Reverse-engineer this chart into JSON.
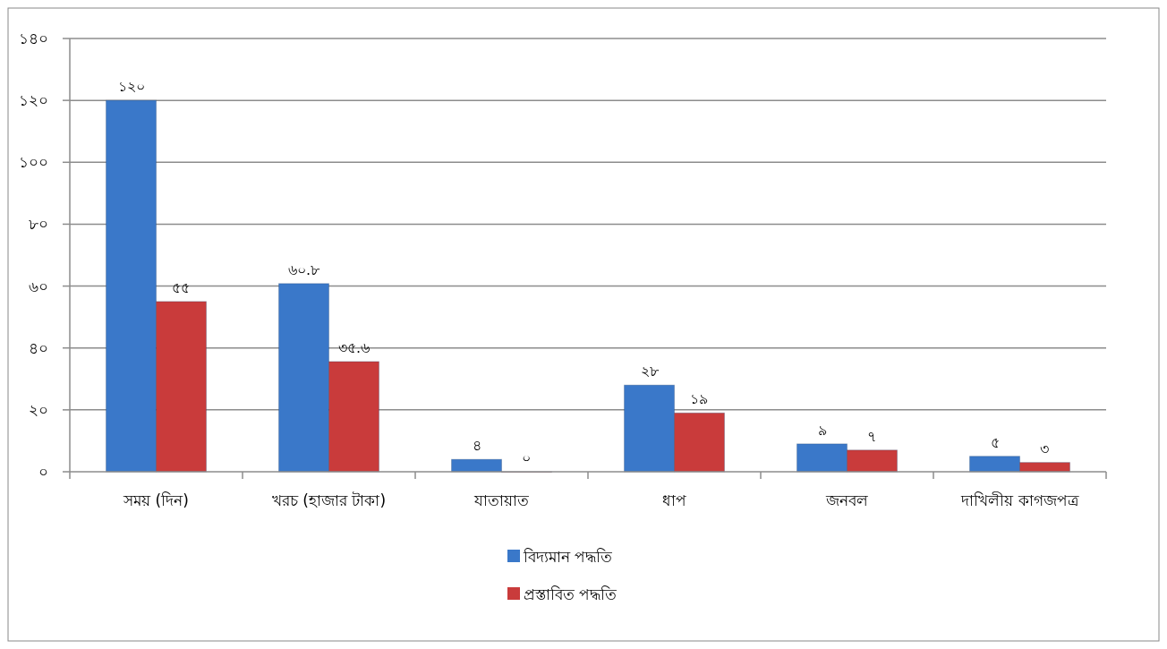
{
  "chart_data": {
    "type": "bar",
    "categories": [
      "সময় (দিন)",
      "খরচ (হাজার টাকা)",
      "যাতায়াত",
      "ধাপ",
      "জনবল",
      "দাখিলীয় কাগজপত্র"
    ],
    "series": [
      {
        "name": "বিদ্যমান পদ্ধতি",
        "color": "#3a78c9",
        "values": [
          120,
          60.8,
          4,
          28,
          9,
          5
        ],
        "value_labels": [
          "১২০",
          "৬০.৮",
          "৪",
          "২৮",
          "৯",
          "৫"
        ]
      },
      {
        "name": "প্রস্তাবিত পদ্ধতি",
        "color": "#c93b3b",
        "values": [
          55,
          35.6,
          0,
          19,
          7,
          3
        ],
        "value_labels": [
          "৫৫",
          "৩৫.৬",
          "০",
          "১৯",
          "৭",
          "৩"
        ]
      }
    ],
    "ylim": [
      0,
      140
    ],
    "yticks": [
      {
        "value": 0,
        "label": "০"
      },
      {
        "value": 20,
        "label": "২০"
      },
      {
        "value": 40,
        "label": "৪০"
      },
      {
        "value": 60,
        "label": "৬০"
      },
      {
        "value": 80,
        "label": "৮০"
      },
      {
        "value": 100,
        "label": "১০০"
      },
      {
        "value": 120,
        "label": "১২০"
      },
      {
        "value": 140,
        "label": "১৪০"
      }
    ],
    "grid": "y",
    "legend": "bottom"
  }
}
